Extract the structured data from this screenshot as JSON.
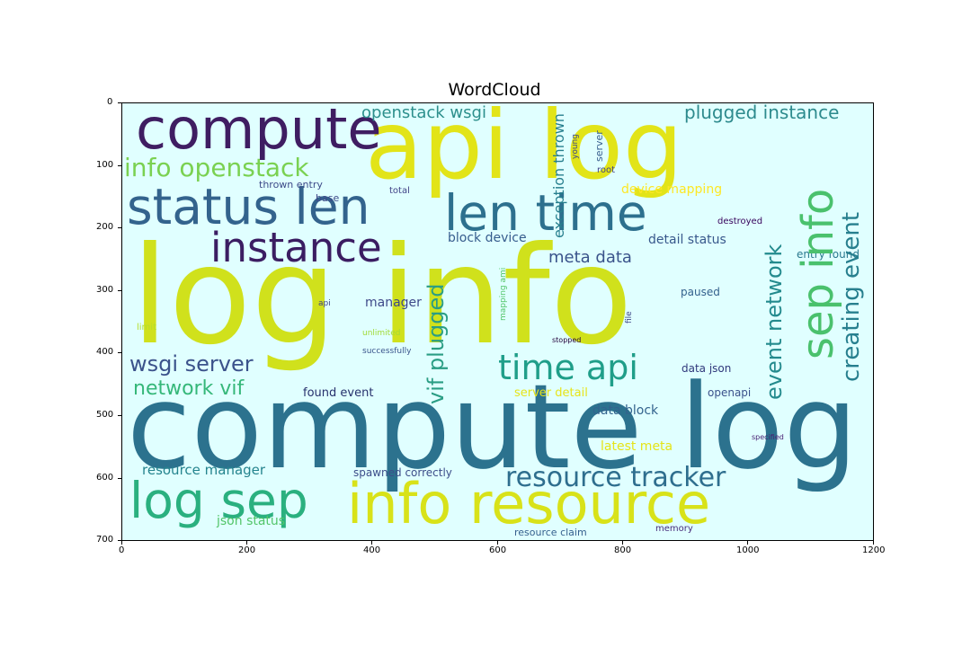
{
  "title": "WordCloud",
  "x_ticks": [
    "0",
    "200",
    "400",
    "600",
    "800",
    "1000",
    "1200"
  ],
  "y_ticks": [
    "0",
    "100",
    "200",
    "300",
    "400",
    "500",
    "600",
    "700"
  ],
  "words": [
    {
      "text": "log info",
      "color": "#d0e11c",
      "size": 150
    },
    {
      "text": "compute log",
      "color": "#2c728e",
      "size": 130
    },
    {
      "text": "api log",
      "color": "#e2e418",
      "size": 105
    },
    {
      "text": "compute",
      "color": "#3f1d62",
      "size": 62
    },
    {
      "text": "info resource",
      "color": "#d8e219",
      "size": 62
    },
    {
      "text": "status len",
      "color": "#33638d",
      "size": 55
    },
    {
      "text": "len time",
      "color": "#2d708e",
      "size": 55
    },
    {
      "text": "log sep",
      "color": "#2ab07f",
      "size": 55
    },
    {
      "text": "sep info",
      "color": "#4ac16d",
      "size": 48
    },
    {
      "text": "instance",
      "color": "#3b1d62",
      "size": 45
    },
    {
      "text": "time api",
      "color": "#1f9e89",
      "size": 38
    },
    {
      "text": "resource tracker",
      "color": "#2e6e8e",
      "size": 30
    },
    {
      "text": "info openstack",
      "color": "#7ad151",
      "size": 28
    },
    {
      "text": "creating event",
      "color": "#277f8e",
      "size": 26
    },
    {
      "text": "event network",
      "color": "#238a8d",
      "size": 24
    },
    {
      "text": "wsgi server",
      "color": "#3b528b",
      "size": 24
    },
    {
      "text": "vif plugged",
      "color": "#2a9d84",
      "size": 24
    },
    {
      "text": "network vif",
      "color": "#35b779",
      "size": 22
    },
    {
      "text": "plugged instance",
      "color": "#2d8a8d",
      "size": 20
    },
    {
      "text": "openstack wsgi",
      "color": "#2c8f8c",
      "size": 18
    },
    {
      "text": "meta data",
      "color": "#3a538b",
      "size": 18
    },
    {
      "text": "exception thrown",
      "color": "#277f8e",
      "size": 16
    },
    {
      "text": "resource manager",
      "color": "#25848e",
      "size": 15
    },
    {
      "text": "device mapping",
      "color": "#fde725",
      "size": 14
    },
    {
      "text": "block device",
      "color": "#365c8d",
      "size": 14
    },
    {
      "text": "detail status",
      "color": "#38588c",
      "size": 14
    },
    {
      "text": "data block",
      "color": "#33638d",
      "size": 14
    },
    {
      "text": "latest meta",
      "color": "#e5e419",
      "size": 14
    },
    {
      "text": "json status",
      "color": "#52c569",
      "size": 14
    },
    {
      "text": "manager",
      "color": "#3e4989",
      "size": 14
    },
    {
      "text": "server detail",
      "color": "#e7e419",
      "size": 13
    },
    {
      "text": "found event",
      "color": "#26306c",
      "size": 13
    },
    {
      "text": "entry found",
      "color": "#2a788e",
      "size": 12
    },
    {
      "text": "paused",
      "color": "#34618d",
      "size": 12
    },
    {
      "text": "data json",
      "color": "#30397c",
      "size": 12
    },
    {
      "text": "openapi",
      "color": "#3b518b",
      "size": 12
    },
    {
      "text": "spawned correctly",
      "color": "#3d4e8a",
      "size": 12
    },
    {
      "text": "resource claim",
      "color": "#355f8d",
      "size": 11
    },
    {
      "text": "server",
      "color": "#365d8d",
      "size": 11
    },
    {
      "text": "thrown entry",
      "color": "#3e4a89",
      "size": 11
    },
    {
      "text": "base",
      "color": "#3e4a89",
      "size": 11
    },
    {
      "text": "total",
      "color": "#404387",
      "size": 10
    },
    {
      "text": "root",
      "color": "#414487",
      "size": 10
    },
    {
      "text": "destroyed",
      "color": "#38045d",
      "size": 10
    },
    {
      "text": "memory",
      "color": "#472d7b",
      "size": 10
    },
    {
      "text": "limit",
      "color": "#b5de2b",
      "size": 10
    },
    {
      "text": "api",
      "color": "#404387",
      "size": 9
    },
    {
      "text": "unlimited",
      "color": "#a2da37",
      "size": 9
    },
    {
      "text": "successfully",
      "color": "#3a548c",
      "size": 9
    },
    {
      "text": "stopped",
      "color": "#26043d",
      "size": 8
    },
    {
      "text": "file",
      "color": "#3f4788",
      "size": 9
    },
    {
      "text": "mapping ami",
      "color": "#52c569",
      "size": 9
    },
    {
      "text": "specified",
      "color": "#482173",
      "size": 8
    },
    {
      "text": "young",
      "color": "#3e4a89",
      "size": 9
    }
  ]
}
